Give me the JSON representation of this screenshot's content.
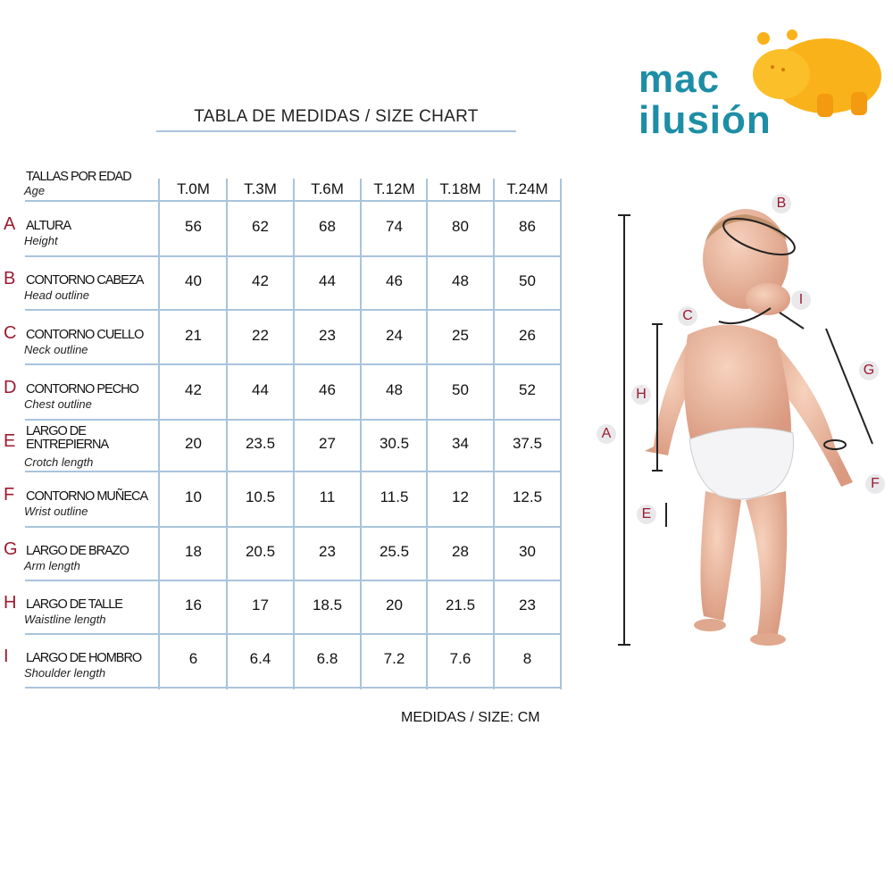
{
  "title": "TABLA DE MEDIDAS / SIZE CHART",
  "brand": {
    "line1": "mac",
    "line2": "ilusión",
    "text_color": "#1d8ea5",
    "mascot_color": "#f9b219"
  },
  "table": {
    "header": {
      "es": "TALLAS POR EDAD",
      "en": "Age",
      "sizes": [
        "T.0M",
        "T.3M",
        "T.6M",
        "T.12M",
        "T.18M",
        "T.24M"
      ]
    },
    "rows": [
      {
        "letter": "A",
        "es": "ALTURA",
        "en": "Height",
        "values": [
          "56",
          "62",
          "68",
          "74",
          "80",
          "86"
        ]
      },
      {
        "letter": "B",
        "es": "CONTORNO CABEZA",
        "en": "Head outline",
        "values": [
          "40",
          "42",
          "44",
          "46",
          "48",
          "50"
        ]
      },
      {
        "letter": "C",
        "es": "CONTORNO CUELLO",
        "en": "Neck outline",
        "values": [
          "21",
          "22",
          "23",
          "24",
          "25",
          "26"
        ]
      },
      {
        "letter": "D",
        "es": "CONTORNO PECHO",
        "en": "Chest outline",
        "values": [
          "42",
          "44",
          "46",
          "48",
          "50",
          "52"
        ]
      },
      {
        "letter": "E",
        "es": "LARGO DE ENTREPIERNA",
        "en": "Crotch length",
        "values": [
          "20",
          "23.5",
          "27",
          "30.5",
          "34",
          "37.5"
        ]
      },
      {
        "letter": "F",
        "es": "CONTORNO MUÑECA",
        "en": "Wrist outline",
        "values": [
          "10",
          "10.5",
          "11",
          "11.5",
          "12",
          "12.5"
        ]
      },
      {
        "letter": "G",
        "es": "LARGO DE BRAZO",
        "en": "Arm length",
        "values": [
          "18",
          "20.5",
          "23",
          "25.5",
          "28",
          "30"
        ]
      },
      {
        "letter": "H",
        "es": "LARGO DE TALLE",
        "en": "Waistline length",
        "values": [
          "16",
          "17",
          "18.5",
          "20",
          "21.5",
          "23"
        ]
      },
      {
        "letter": "I",
        "es": "LARGO DE HOMBRO",
        "en": "Shoulder length",
        "values": [
          "6",
          "6.4",
          "6.8",
          "7.2",
          "7.6",
          "8"
        ]
      }
    ]
  },
  "units": "MEDIDAS / SIZE: CM",
  "diagram_markers": [
    "A",
    "B",
    "C",
    "E",
    "F",
    "G",
    "H",
    "I"
  ],
  "accent_color": "#a9c4dc",
  "letter_color": "#9b1b30"
}
